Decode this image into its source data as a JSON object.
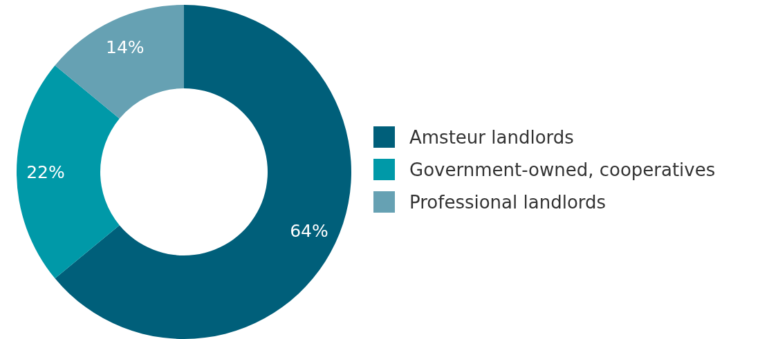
{
  "chart_data": {
    "type": "donut",
    "categories": [
      "Amsteur landlords",
      "Government-owned, cooperatives",
      "Professional landlords"
    ],
    "values": [
      64,
      22,
      14
    ],
    "colors": [
      "#005f7a",
      "#0099a8",
      "#66a1b3"
    ],
    "value_labels": [
      "64%",
      "22%",
      "14%"
    ],
    "legend": "right"
  }
}
